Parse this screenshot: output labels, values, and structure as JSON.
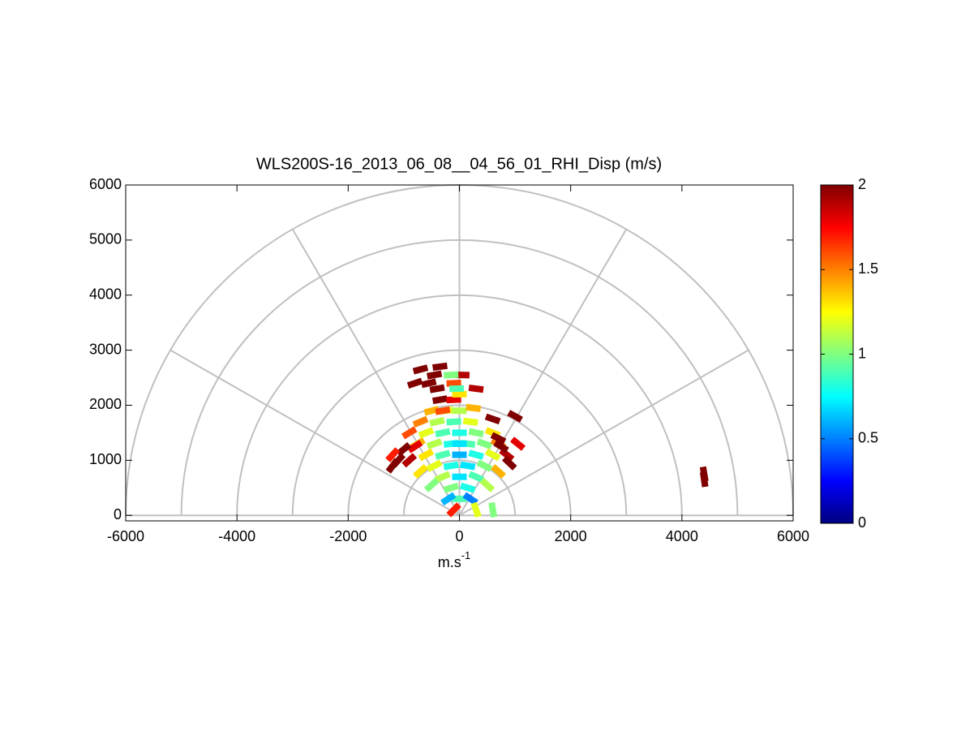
{
  "chart_data": {
    "type": "polar_rhi",
    "title": "WLS200S-16_2013_06_08__04_56_01_RHI_Disp (m/s)",
    "x_label": {
      "base": "m.s",
      "sup": "-1"
    },
    "xlim": [
      -6000,
      6000
    ],
    "ylim": [
      -100,
      6000
    ],
    "xticks": [
      -6000,
      -4000,
      -2000,
      0,
      2000,
      4000,
      6000
    ],
    "yticks": [
      0,
      1000,
      2000,
      3000,
      4000,
      5000,
      6000
    ],
    "grid": true,
    "colormap": "jet",
    "clim": [
      0,
      2
    ],
    "cticks": [
      0,
      0.5,
      1,
      1.5,
      2
    ],
    "series": [
      {
        "x": [
          0,
          -150,
          150,
          0,
          -300,
          300,
          -450,
          -150,
          150,
          450,
          -600,
          -300,
          0,
          300,
          600,
          -750,
          -450,
          -150,
          150,
          450,
          700,
          -900,
          -600,
          -300,
          0,
          300,
          600,
          -700,
          -400,
          -100,
          200,
          -500,
          -250,
          0,
          -350,
          -100,
          -400,
          0,
          -550,
          50,
          -450,
          -700,
          -150,
          -900,
          -1100,
          -1200,
          -800,
          -1000,
          850,
          900,
          750,
          1050,
          700,
          1000,
          600,
          -100,
          -350,
          -800,
          -1200,
          0,
          200,
          -200,
          -500,
          500,
          -700,
          700,
          4400,
          4400,
          300,
          600,
          -100,
          -300,
          250,
          300,
          -50
        ],
        "y": [
          300,
          500,
          500,
          700,
          700,
          700,
          900,
          900,
          900,
          900,
          1100,
          1100,
          1100,
          1100,
          1100,
          1300,
          1300,
          1300,
          1300,
          1300,
          1300,
          1500,
          1500,
          1500,
          1500,
          1500,
          1500,
          1700,
          1700,
          1700,
          1700,
          1900,
          1900,
          1900,
          2100,
          2100,
          2300,
          2200,
          2400,
          2550,
          2550,
          2650,
          2550,
          1000,
          1000,
          900,
          1250,
          1200,
          1100,
          950,
          1250,
          1300,
          1400,
          1800,
          1750,
          2400,
          2700,
          2400,
          1100,
          1300,
          300,
          300,
          550,
          550,
          800,
          800,
          650,
          750,
          100,
          100,
          100,
          1900,
          1950,
          2300,
          2300
        ],
        "values": [
          0.9,
          1.0,
          0.8,
          0.7,
          1.1,
          0.9,
          1.2,
          0.8,
          0.7,
          1.0,
          1.3,
          0.9,
          0.6,
          0.8,
          1.2,
          1.4,
          1.1,
          0.8,
          0.9,
          1.0,
          1.5,
          1.6,
          1.2,
          0.9,
          0.8,
          1.0,
          1.3,
          1.5,
          1.1,
          0.9,
          1.2,
          1.4,
          1.2,
          1.1,
          2.0,
          1.8,
          2.0,
          1.3,
          2.0,
          1.9,
          2.0,
          2.0,
          1.0,
          1.9,
          2.0,
          2.0,
          1.8,
          2.0,
          1.9,
          2.0,
          2.0,
          1.8,
          2.0,
          2.0,
          2.0,
          1.6,
          2.0,
          2.0,
          1.7,
          0.7,
          0.5,
          0.6,
          1.0,
          1.1,
          1.3,
          1.4,
          2.0,
          2.0,
          1.2,
          1.0,
          1.7,
          1.6,
          1.4,
          1.9,
          0.9
        ]
      }
    ]
  }
}
